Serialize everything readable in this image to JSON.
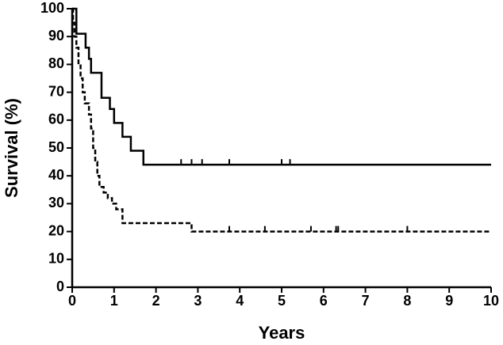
{
  "chart_data": {
    "type": "step",
    "xlabel": "Years",
    "ylabel": "Survival (%)",
    "xlim": [
      0,
      10
    ],
    "xticks": [
      0,
      1,
      2,
      3,
      4,
      5,
      6,
      7,
      8,
      9,
      10
    ],
    "ylim": [
      0,
      100
    ],
    "yticks": [
      0,
      10,
      20,
      30,
      40,
      50,
      60,
      70,
      80,
      90,
      100
    ],
    "grid": false,
    "series": [
      {
        "color": "#000000",
        "line_style": "solid",
        "x": [
          0,
          0.1,
          0.32,
          0.4,
          0.45,
          0.7,
          0.9,
          1.0,
          1.2,
          1.4,
          1.7,
          10
        ],
        "values": [
          100,
          91,
          86,
          82,
          77,
          68,
          64,
          59,
          54,
          49,
          44,
          44
        ],
        "censored_x": [
          2.6,
          2.85,
          3.1,
          3.75,
          5.0,
          5.2
        ],
        "censored_y": [
          44,
          44,
          44,
          44,
          44,
          44
        ]
      },
      {
        "color": "#000000",
        "line_style": "dashed",
        "x": [
          0,
          0.02,
          0.05,
          0.1,
          0.15,
          0.2,
          0.25,
          0.3,
          0.4,
          0.45,
          0.5,
          0.55,
          0.6,
          0.65,
          0.75,
          0.85,
          0.95,
          1.05,
          1.2,
          2.85,
          10
        ],
        "values": [
          100,
          95,
          90,
          86,
          80,
          75,
          70,
          66,
          62,
          57,
          50,
          45,
          40,
          36,
          34,
          32,
          30,
          28,
          23,
          20,
          20
        ],
        "censored_x": [
          3.75,
          4.6,
          5.7,
          6.3,
          6.35,
          8.0
        ],
        "censored_y": [
          20,
          20,
          20,
          20,
          20,
          20
        ]
      }
    ]
  }
}
